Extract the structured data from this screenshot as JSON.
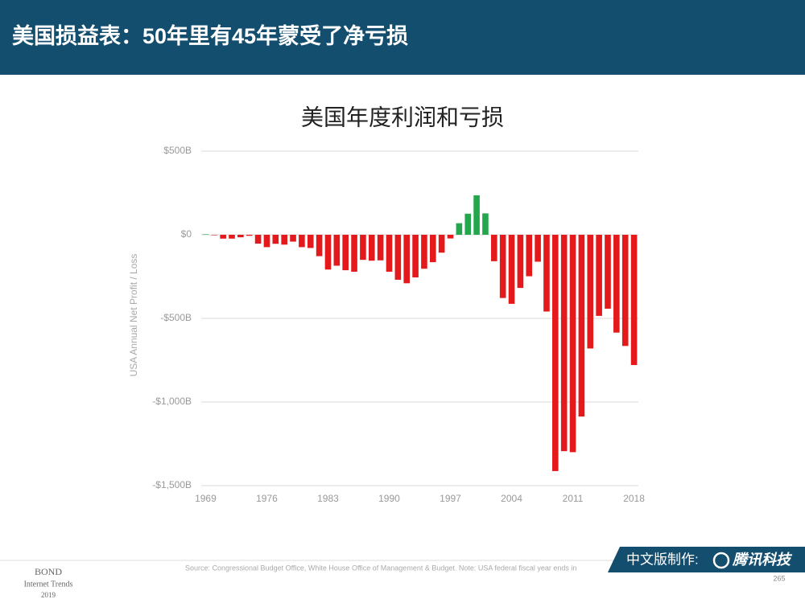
{
  "header": {
    "title": "美国损益表：50年里有45年蒙受了净亏损"
  },
  "chart_data": {
    "type": "bar",
    "title": "美国年度利润和亏损",
    "y_label": "USA Annual Net Profit / Loss",
    "x": [
      1969,
      1970,
      1971,
      1972,
      1973,
      1974,
      1975,
      1976,
      1977,
      1978,
      1979,
      1980,
      1981,
      1982,
      1983,
      1984,
      1985,
      1986,
      1987,
      1988,
      1989,
      1990,
      1991,
      1992,
      1993,
      1994,
      1995,
      1996,
      1997,
      1998,
      1999,
      2000,
      2001,
      2002,
      2003,
      2004,
      2005,
      2006,
      2007,
      2008,
      2009,
      2010,
      2011,
      2012,
      2013,
      2014,
      2015,
      2016,
      2017,
      2018
    ],
    "values": [
      3,
      -3,
      -23,
      -23,
      -15,
      -6,
      -53,
      -74,
      -54,
      -59,
      -41,
      -74,
      -79,
      -128,
      -208,
      -185,
      -212,
      -221,
      -150,
      -155,
      -153,
      -221,
      -269,
      -290,
      -255,
      -203,
      -164,
      -107,
      -22,
      69,
      126,
      236,
      128,
      -158,
      -378,
      -413,
      -318,
      -248,
      -161,
      -459,
      -1413,
      -1294,
      -1300,
      -1087,
      -680,
      -485,
      -442,
      -585,
      -665,
      -779
    ],
    "color": "#e3191c",
    "positive_color": "#23a64c",
    "xlim": [
      1968.5,
      2018.5
    ],
    "xticks": [
      1969,
      1976,
      1983,
      1990,
      1997,
      2004,
      2011,
      2018
    ],
    "ylim": [
      -1500,
      500
    ],
    "yticks": [
      {
        "value": 500,
        "label": "$500B"
      },
      {
        "value": 0,
        "label": "$0"
      },
      {
        "value": -500,
        "label": "-$500B"
      },
      {
        "value": -1000,
        "label": "-$1,000B"
      },
      {
        "value": -1500,
        "label": "-$1,500B"
      }
    ],
    "grid": true
  },
  "footer": {
    "source": "Source: Congressional Budget Office, White House Office of Management & Budget.  Note: USA federal fiscal year ends in",
    "credit": "中文版制作:",
    "brand": "腾讯科技",
    "bond": "BOND",
    "report": "Internet Trends",
    "year": "2019",
    "page": "265"
  }
}
